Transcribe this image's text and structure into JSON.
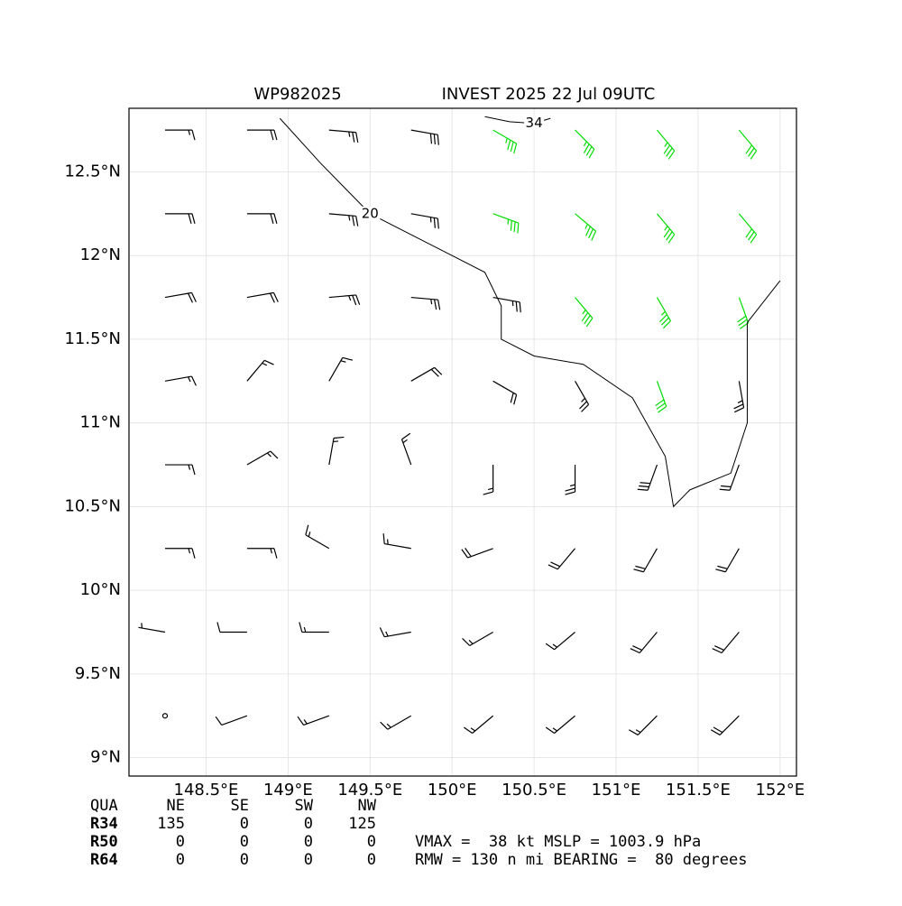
{
  "chart_data": {
    "type": "barbs",
    "title_left": "WP982025",
    "title_right": "INVEST 2025 22 Jul 09UTC",
    "xlim": [
      148.03,
      152.1
    ],
    "ylim": [
      8.89,
      12.88
    ],
    "xticks": [
      {
        "value": 148.5,
        "label": "148.5°E"
      },
      {
        "value": 149,
        "label": "149°E"
      },
      {
        "value": 149.5,
        "label": "149.5°E"
      },
      {
        "value": 150,
        "label": "150°E"
      },
      {
        "value": 150.5,
        "label": "150.5°E"
      },
      {
        "value": 151,
        "label": "151°E"
      },
      {
        "value": 151.5,
        "label": "151.5°E"
      },
      {
        "value": 152,
        "label": "152°E"
      }
    ],
    "yticks": [
      {
        "value": 9,
        "label": "9°N"
      },
      {
        "value": 9.5,
        "label": "9.5°N"
      },
      {
        "value": 10,
        "label": "10°N"
      },
      {
        "value": 10.5,
        "label": "10.5°N"
      },
      {
        "value": 11,
        "label": "11°N"
      },
      {
        "value": 11.5,
        "label": "11.5°N"
      },
      {
        "value": 12,
        "label": "12°N"
      },
      {
        "value": 12.5,
        "label": "12.5°N"
      }
    ],
    "grid": true,
    "color": "#000000",
    "gale_color": "#00dd00",
    "barbs": {
      "x": [
        148.25,
        148.75,
        149.25,
        149.75,
        150.25,
        150.75,
        151.25,
        151.75,
        148.25,
        148.75,
        149.25,
        149.75,
        150.25,
        150.75,
        151.25,
        151.75,
        148.25,
        148.75,
        149.25,
        149.75,
        150.25,
        150.75,
        151.25,
        151.75,
        148.25,
        148.75,
        149.25,
        149.75,
        150.25,
        150.75,
        151.25,
        151.75,
        148.25,
        148.75,
        149.25,
        149.75,
        150.25,
        150.75,
        151.25,
        151.75,
        148.25,
        148.75,
        149.25,
        149.75,
        150.25,
        150.75,
        151.25,
        151.75,
        148.25,
        148.75,
        149.25,
        149.75,
        150.25,
        150.75,
        151.25,
        151.75,
        148.25,
        148.75,
        149.25,
        149.75,
        150.25,
        150.75,
        151.25,
        151.75
      ],
      "y": [
        12.75,
        12.75,
        12.75,
        12.75,
        12.75,
        12.75,
        12.75,
        12.75,
        12.25,
        12.25,
        12.25,
        12.25,
        12.25,
        12.25,
        12.25,
        12.25,
        11.75,
        11.75,
        11.75,
        11.75,
        11.75,
        11.75,
        11.75,
        11.75,
        11.25,
        11.25,
        11.25,
        11.25,
        11.25,
        11.25,
        11.25,
        11.25,
        10.75,
        10.75,
        10.75,
        10.75,
        10.75,
        10.75,
        10.75,
        10.75,
        10.25,
        10.25,
        10.25,
        10.25,
        10.25,
        10.25,
        10.25,
        10.25,
        9.75,
        9.75,
        9.75,
        9.75,
        9.75,
        9.75,
        9.75,
        9.75,
        9.25,
        9.25,
        9.25,
        9.25,
        9.25,
        9.25,
        9.25,
        9.25
      ],
      "speed": [
        15,
        20,
        25,
        30,
        36,
        38,
        36,
        34,
        20,
        22,
        25,
        28,
        35,
        36,
        35,
        34,
        20,
        22,
        25,
        25,
        28,
        36,
        35,
        34,
        18,
        15,
        18,
        20,
        22,
        28,
        34,
        25,
        15,
        15,
        15,
        18,
        18,
        25,
        30,
        22,
        15,
        15,
        15,
        15,
        20,
        22,
        20,
        20,
        5,
        10,
        15,
        15,
        18,
        18,
        20,
        20,
        0,
        10,
        15,
        15,
        15,
        18,
        18,
        20
      ],
      "direction": [
        90,
        90,
        95,
        100,
        120,
        135,
        140,
        140,
        90,
        90,
        95,
        100,
        110,
        130,
        140,
        140,
        80,
        80,
        85,
        95,
        100,
        140,
        150,
        160,
        80,
        40,
        30,
        60,
        120,
        150,
        160,
        170,
        90,
        60,
        10,
        340,
        180,
        180,
        200,
        200,
        90,
        90,
        300,
        280,
        250,
        220,
        210,
        210,
        280,
        270,
        270,
        260,
        240,
        230,
        220,
        220,
        250,
        250,
        250,
        240,
        230,
        230,
        225,
        225
      ]
    },
    "contours": [
      {
        "level": 34,
        "x": [
          150.2,
          150.35,
          150.5,
          150.6
        ],
        "y": [
          12.83,
          12.8,
          12.79,
          12.82
        ]
      },
      {
        "level": 20,
        "x": [
          148.95,
          149.2,
          149.5,
          149.9,
          150.2,
          150.3,
          150.3,
          150.5,
          150.8,
          151.1,
          151.3,
          151.35,
          151.45,
          151.7,
          151.8,
          151.8,
          152.0
        ],
        "y": [
          12.82,
          12.55,
          12.25,
          12.05,
          11.9,
          11.7,
          11.5,
          11.4,
          11.35,
          11.15,
          10.8,
          10.5,
          10.6,
          10.7,
          11.0,
          11.6,
          11.85
        ]
      }
    ]
  },
  "table": {
    "header": [
      "QUA",
      "NE",
      "SE",
      "SW",
      "NW"
    ],
    "rows": [
      [
        "R34",
        135,
        0,
        0,
        125
      ],
      [
        "R50",
        0,
        0,
        0,
        0
      ],
      [
        "R64",
        0,
        0,
        0,
        0
      ]
    ]
  },
  "summary": [
    "VMAX =  38 kt MSLP = 1003.9 hPa",
    "RMW = 130 n mi BEARING =  80 degrees"
  ]
}
